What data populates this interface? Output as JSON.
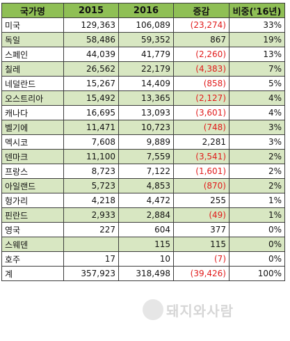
{
  "table": {
    "headers": [
      "국가명",
      "2015",
      "2016",
      "증감",
      "비중('16년)"
    ],
    "rows": [
      {
        "country": "미국",
        "y2015": "129,363",
        "y2016": "106,089",
        "change": "(23,274)",
        "share": "33%",
        "negative": true
      },
      {
        "country": "독일",
        "y2015": "58,486",
        "y2016": "59,352",
        "change": "867",
        "share": "19%",
        "negative": false
      },
      {
        "country": "스페인",
        "y2015": "44,039",
        "y2016": "41,779",
        "change": "(2,260)",
        "share": "13%",
        "negative": true
      },
      {
        "country": "칠레",
        "y2015": "26,562",
        "y2016": "22,179",
        "change": "(4,383)",
        "share": "7%",
        "negative": true
      },
      {
        "country": "네덜란드",
        "y2015": "15,267",
        "y2016": "14,409",
        "change": "(858)",
        "share": "5%",
        "negative": true
      },
      {
        "country": "오스트리아",
        "y2015": "15,492",
        "y2016": "13,365",
        "change": "(2,127)",
        "share": "4%",
        "negative": true
      },
      {
        "country": "캐나다",
        "y2015": "16,695",
        "y2016": "13,093",
        "change": "(3,601)",
        "share": "4%",
        "negative": true
      },
      {
        "country": "벨기에",
        "y2015": "11,471",
        "y2016": "10,723",
        "change": "(748)",
        "share": "3%",
        "negative": true
      },
      {
        "country": "멕시코",
        "y2015": "7,608",
        "y2016": "9,889",
        "change": "2,281",
        "share": "3%",
        "negative": false
      },
      {
        "country": "덴마크",
        "y2015": "11,100",
        "y2016": "7,559",
        "change": "(3,541)",
        "share": "2%",
        "negative": true
      },
      {
        "country": "프랑스",
        "y2015": "8,723",
        "y2016": "7,122",
        "change": "(1,601)",
        "share": "2%",
        "negative": true
      },
      {
        "country": "아일랜드",
        "y2015": "5,723",
        "y2016": "4,853",
        "change": "(870)",
        "share": "2%",
        "negative": true
      },
      {
        "country": "헝가리",
        "y2015": "4,218",
        "y2016": "4,472",
        "change": "255",
        "share": "1%",
        "negative": false
      },
      {
        "country": "핀란드",
        "y2015": "2,933",
        "y2016": "2,884",
        "change": "(49)",
        "share": "1%",
        "negative": true
      },
      {
        "country": "영국",
        "y2015": "227",
        "y2016": "604",
        "change": "377",
        "share": "0%",
        "negative": false
      },
      {
        "country": "스웨덴",
        "y2015": "",
        "y2016": "115",
        "change": "115",
        "share": "0%",
        "negative": false
      },
      {
        "country": "호주",
        "y2015": "17",
        "y2016": "10",
        "change": "(7)",
        "share": "0%",
        "negative": true
      }
    ],
    "total": {
      "country": "계",
      "y2015": "357,923",
      "y2016": "318,498",
      "change": "(39,426)",
      "share": "100%"
    }
  },
  "watermark": {
    "text": "돼지와사람"
  },
  "colors": {
    "header_bg": "#8fbf55",
    "alt_row_bg": "#d8e7c2",
    "negative_text": "#e11b1b",
    "border": "#3c3c3c"
  }
}
